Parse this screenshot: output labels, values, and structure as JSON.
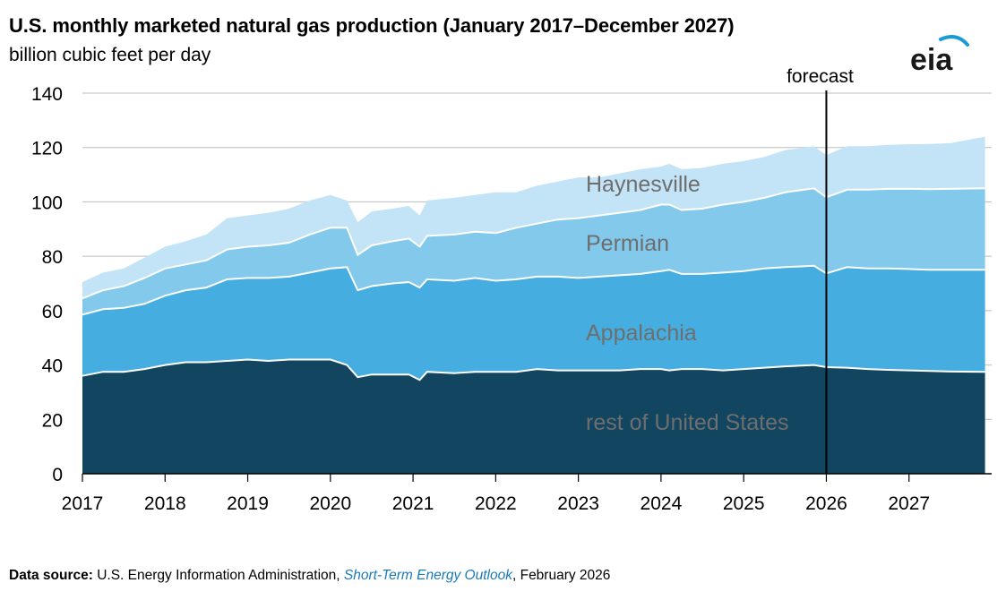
{
  "title": "U.S. monthly marketed natural gas production (January 2017–December 2027)",
  "subtitle": "billion cubic feet per day",
  "logo_text": "eia",
  "source": {
    "label": "Data source:",
    "text_before": " U.S. Energy Information Administration, ",
    "publication": "Short-Term Energy Outlook",
    "text_after": ", February 2026"
  },
  "colors": {
    "rest_of_us": "#124560",
    "appalachia": "#45ade0",
    "permian": "#82c9ec",
    "haynesville": "#c3e4f6",
    "separator": "#ffffff"
  },
  "chart_data": {
    "type": "area",
    "stacked": true,
    "xlim": [
      2017,
      2028
    ],
    "ylim": [
      0,
      140
    ],
    "y_ticks": [
      0,
      20,
      40,
      60,
      80,
      100,
      120,
      140
    ],
    "x_ticks": [
      "2017",
      "2018",
      "2019",
      "2020",
      "2021",
      "2022",
      "2023",
      "2024",
      "2025",
      "2026",
      "2027"
    ],
    "forecast_start": 2026,
    "forecast_label": "forecast",
    "x": [
      2017.0,
      2017.25,
      2017.5,
      2017.75,
      2018.0,
      2018.25,
      2018.5,
      2018.75,
      2019.0,
      2019.25,
      2019.5,
      2019.75,
      2020.0,
      2020.2,
      2020.33,
      2020.5,
      2020.75,
      2020.95,
      2021.08,
      2021.17,
      2021.5,
      2021.75,
      2022.0,
      2022.25,
      2022.5,
      2022.75,
      2023.0,
      2023.25,
      2023.5,
      2023.75,
      2024.0,
      2024.1,
      2024.25,
      2024.5,
      2024.75,
      2025.0,
      2025.25,
      2025.5,
      2025.85,
      2026.0,
      2026.25,
      2026.5,
      2026.75,
      2027.0,
      2027.25,
      2027.5,
      2027.92
    ],
    "series": [
      {
        "name": "rest of United States",
        "values": [
          36,
          37.5,
          37.5,
          38.5,
          40,
          41,
          41,
          41.5,
          42,
          41.5,
          42,
          42,
          42,
          40,
          35.5,
          36.5,
          36.5,
          36.5,
          34.5,
          37.5,
          37,
          37.5,
          37.5,
          37.5,
          38.5,
          38,
          38,
          38,
          38,
          38.5,
          38.5,
          38,
          38.5,
          38.5,
          38,
          38.5,
          39,
          39.5,
          40,
          39.2,
          39,
          38.5,
          38.2,
          38,
          37.8,
          37.6,
          37.5
        ]
      },
      {
        "name": "Appalachia",
        "values": [
          22.5,
          23,
          23.5,
          24,
          25.5,
          26.5,
          27.5,
          30,
          30,
          30.5,
          30.5,
          32,
          33.5,
          36,
          32,
          32.5,
          33.5,
          34,
          34,
          34,
          34,
          34.5,
          33.5,
          34,
          34,
          34.5,
          34,
          34.5,
          35,
          35,
          36,
          37,
          35,
          35,
          36,
          36,
          36.5,
          36.5,
          36.5,
          34.5,
          37,
          37,
          37.3,
          37.3,
          37.2,
          37.4,
          37.5
        ]
      },
      {
        "name": "Permian",
        "values": [
          6,
          7,
          8,
          9.5,
          10,
          9.5,
          10,
          11,
          11.5,
          12,
          12.5,
          14,
          15,
          14.5,
          13,
          15,
          15.5,
          16,
          15,
          16,
          17,
          17,
          17.5,
          19,
          19.5,
          21,
          22,
          22.5,
          23,
          23.5,
          24.5,
          24,
          23.5,
          24,
          25,
          25.5,
          26,
          27.5,
          28.5,
          28,
          28.5,
          29,
          29.3,
          29.5,
          29.7,
          29.8,
          30
        ]
      },
      {
        "name": "Haynesville",
        "values": [
          6,
          6.5,
          6.5,
          7.5,
          8,
          8.5,
          9.5,
          11.5,
          11.5,
          12,
          12.5,
          12.5,
          12,
          10,
          12,
          12.5,
          12,
          12,
          11.5,
          13,
          13.5,
          13.5,
          15,
          13,
          14,
          14,
          15,
          14,
          14.5,
          15,
          14,
          15,
          15,
          15,
          15,
          15,
          15,
          15.5,
          15.5,
          15.5,
          16,
          16,
          16.2,
          16.4,
          16.6,
          16.8,
          19
        ]
      }
    ],
    "area_labels": [
      "rest of United States",
      "Appalachia",
      "Permian",
      "Haynesville"
    ]
  }
}
